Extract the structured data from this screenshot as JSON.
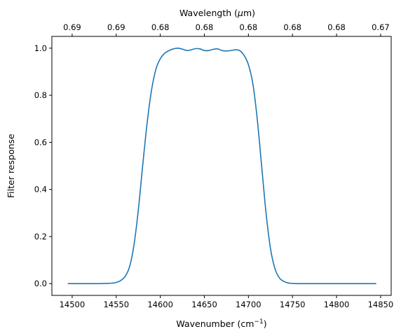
{
  "chart_data": {
    "type": "line",
    "title": "",
    "xlabel": "Wavenumber (cm",
    "xlabel_sup": "−1",
    "xlabel_tail": ")",
    "ylabel": "Filter response",
    "top_axis_label_pre": "Wavelength (",
    "top_axis_label_mu": "μ",
    "top_axis_label_post": "m)",
    "xlim": [
      14477,
      14862
    ],
    "ylim": [
      -0.05,
      1.05
    ],
    "x_ticks": [
      14500,
      14550,
      14600,
      14650,
      14700,
      14750,
      14800,
      14850
    ],
    "x_tick_labels": [
      "14500",
      "14550",
      "14600",
      "14650",
      "14700",
      "14750",
      "14800",
      "14850"
    ],
    "y_ticks": [
      0.0,
      0.2,
      0.4,
      0.6,
      0.8,
      1.0
    ],
    "y_tick_labels": [
      "0.0",
      "0.2",
      "0.4",
      "0.6",
      "0.8",
      "1.0"
    ],
    "top_ticks": [
      14500,
      14550,
      14600,
      14650,
      14700,
      14750,
      14800,
      14850
    ],
    "top_tick_labels": [
      "0.69",
      "0.69",
      "0.68",
      "0.68",
      "0.68",
      "0.68",
      "0.68",
      "0.67"
    ],
    "line_color": "#1f77b4",
    "grid": false,
    "series": [
      {
        "x": [
          14495,
          14510,
          14520,
          14530,
          14540,
          14545,
          14550,
          14555,
          14560,
          14565,
          14570,
          14575,
          14580,
          14585,
          14590,
          14595,
          14600,
          14605,
          14610,
          14615,
          14620,
          14625,
          14630,
          14635,
          14640,
          14645,
          14650,
          14655,
          14660,
          14665,
          14670,
          14675,
          14680,
          14685,
          14690,
          14695,
          14700,
          14705,
          14710,
          14715,
          14720,
          14725,
          14730,
          14735,
          14740,
          14745,
          14750,
          14755,
          14760,
          14765,
          14770,
          14775,
          14780,
          14785,
          14790,
          14800,
          14820,
          14845
        ],
        "y": [
          0.0,
          0.0,
          0.0,
          0.0,
          0.001,
          0.002,
          0.005,
          0.013,
          0.03,
          0.07,
          0.16,
          0.31,
          0.5,
          0.68,
          0.82,
          0.91,
          0.955,
          0.978,
          0.99,
          0.997,
          1.0,
          0.996,
          0.99,
          0.993,
          0.998,
          0.997,
          0.99,
          0.99,
          0.995,
          0.997,
          0.99,
          0.988,
          0.99,
          0.993,
          0.99,
          0.97,
          0.93,
          0.85,
          0.7,
          0.5,
          0.3,
          0.15,
          0.065,
          0.025,
          0.01,
          0.003,
          0.001,
          0.0,
          0.0,
          0.0,
          0.0,
          0.0,
          0.0,
          0.0,
          0.0,
          0.0,
          0.0,
          0.0
        ]
      }
    ]
  }
}
